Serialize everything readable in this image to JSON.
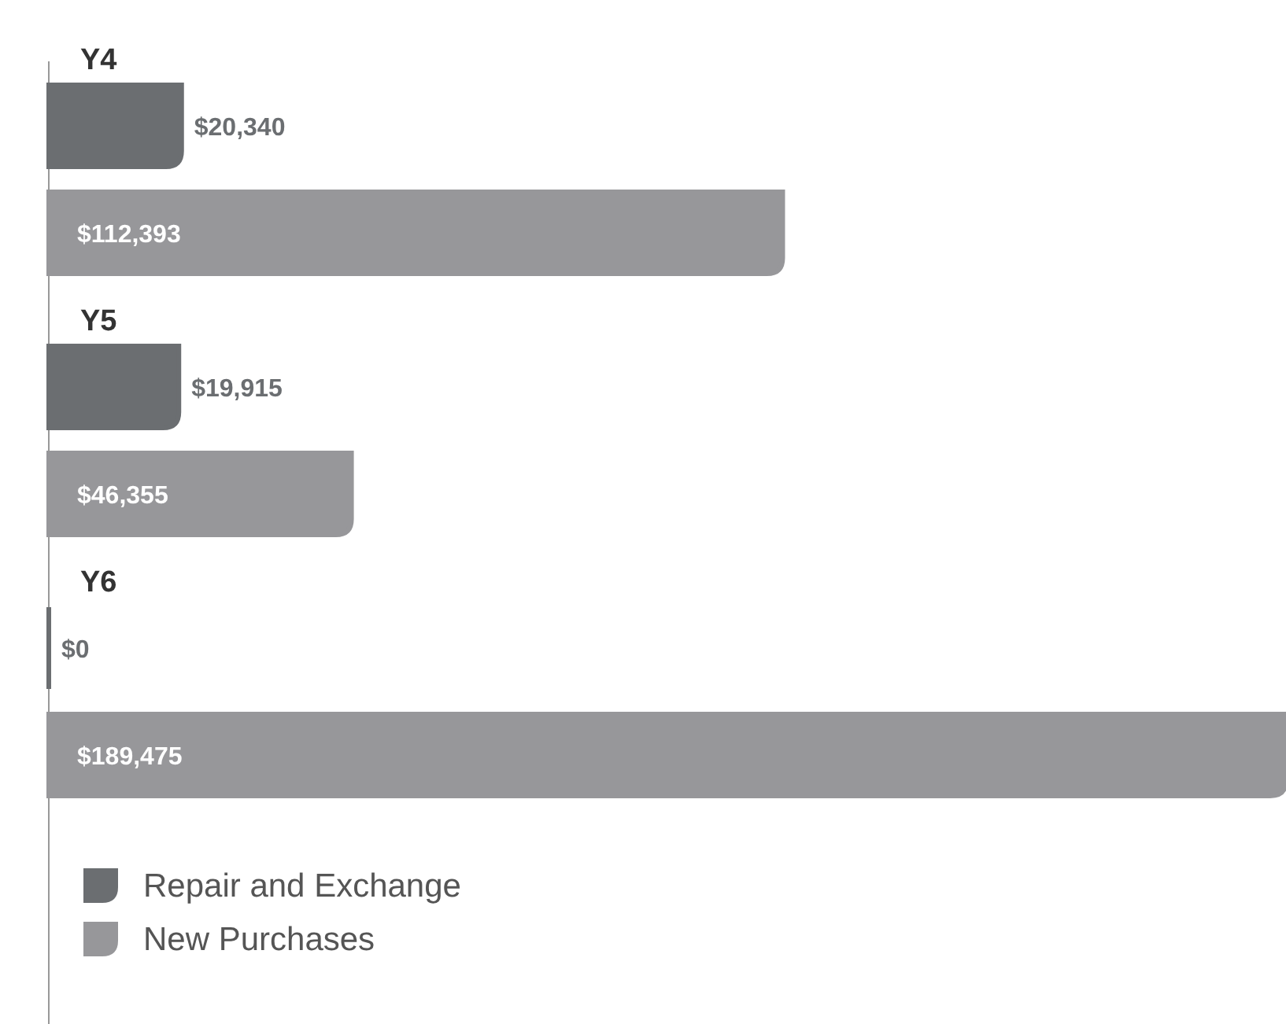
{
  "chart_data": {
    "type": "bar",
    "orientation": "horizontal",
    "categories": [
      "Y4",
      "Y5",
      "Y6"
    ],
    "series": [
      {
        "name": "Repair and Exchange",
        "color": "#6b6e71",
        "values": [
          20340,
          19915,
          0
        ],
        "value_labels": [
          "$20,340",
          "$19,915",
          "$0"
        ]
      },
      {
        "name": "New Purchases",
        "color": "#97979a",
        "values": [
          112393,
          46355,
          189475
        ],
        "value_labels": [
          "$112,393",
          "$46,355",
          "$189,475"
        ]
      }
    ],
    "legend": "bottom left"
  }
}
